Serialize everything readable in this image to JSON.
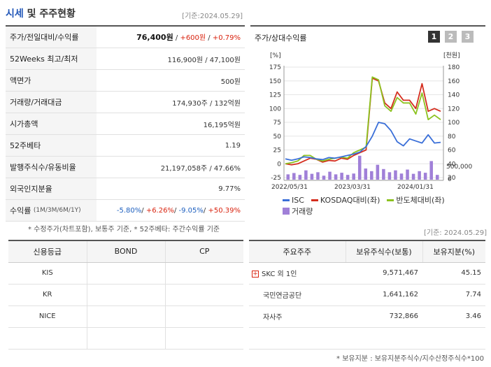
{
  "header": {
    "title_a": "시세",
    "title_b": " 및 주주현황",
    "date": "[기준:2024.05.29]"
  },
  "summary": [
    {
      "label": "주가/전일대비/수익률",
      "price": "76,400원",
      "sep1": " / ",
      "change": "+600원",
      "sep2": " / ",
      "rate": "+0.79%"
    },
    {
      "label": "52Weeks 최고/최저",
      "value": "116,900원 / 47,100원"
    },
    {
      "label": "액면가",
      "value": "500원"
    },
    {
      "label": "거래량/거래대금",
      "value": "174,930주 / 132억원"
    },
    {
      "label": "시가총액",
      "value": "16,195억원"
    },
    {
      "label": "52주베타",
      "value": "1.19"
    },
    {
      "label": "발행주식수/유동비율",
      "value": "21,197,058주 / 47.66%"
    },
    {
      "label": "외국인지분율",
      "value": "9.77%"
    },
    {
      "label": "수익률",
      "sublabel": "(1M/3M/6M/1Y)",
      "r1": "-5.80%",
      "r2": "+6.26%",
      "r3": "-9.05%",
      "r4": "+50.39%"
    }
  ],
  "left_note": "* 수정주가(차트포함), 보통주 기준, * 52주베타: 주간수익률 기준",
  "chart": {
    "title": "주가/상대수익률",
    "buttons": [
      "1",
      "2",
      "3"
    ],
    "left_unit": "[%]",
    "right_unit": "[천원]",
    "left_ticks": [
      "175",
      "150",
      "125",
      "100",
      "75",
      "50",
      "25",
      "0",
      "-25"
    ],
    "right_ticks": [
      "180",
      "160",
      "140",
      "120",
      "100",
      "80",
      "60",
      "40",
      "20"
    ],
    "vol_tick": "500,000",
    "vol_zero": "0",
    "x_labels": [
      "2022/05/31",
      "2023/03/31",
      "2024/01/31"
    ],
    "legend": [
      "ISC",
      "KOSDAQ대비(좌)",
      "반도체대비(좌)",
      "거래량"
    ],
    "colors": {
      "isc": "#3a6fd8",
      "kosdaq": "#d42d1e",
      "semi": "#8cc21f",
      "volume": "#a080d8"
    }
  },
  "chart_data": {
    "type": "line",
    "x_range": [
      "2022/05/31",
      "2024/05/29"
    ],
    "ylim_left": [
      -25,
      175
    ],
    "ylim_right": [
      20,
      180
    ],
    "series": [
      {
        "name": "ISC",
        "axis": "right",
        "values": [
          47,
          45,
          47,
          50,
          49,
          47,
          46,
          49,
          48,
          50,
          52,
          54,
          57,
          65,
          80,
          100,
          98,
          88,
          72,
          66,
          76,
          73,
          70,
          82,
          70,
          71
        ]
      },
      {
        "name": "KOSDAQ대비(좌)",
        "axis": "left",
        "values": [
          0,
          -2,
          0,
          5,
          10,
          8,
          3,
          6,
          5,
          10,
          8,
          15,
          20,
          25,
          155,
          150,
          110,
          100,
          130,
          115,
          115,
          100,
          145,
          95,
          100,
          95
        ]
      },
      {
        "name": "반도체대비(좌)",
        "axis": "left",
        "values": [
          0,
          2,
          5,
          15,
          15,
          8,
          5,
          8,
          10,
          12,
          10,
          20,
          25,
          30,
          157,
          152,
          105,
          95,
          120,
          110,
          110,
          90,
          128,
          80,
          88,
          80
        ]
      },
      {
        "name": "거래량",
        "axis": "volume",
        "vlim": [
          0,
          1000000
        ],
        "values": [
          200000,
          250000,
          180000,
          350000,
          220000,
          280000,
          150000,
          300000,
          200000,
          260000,
          180000,
          230000,
          900000,
          420000,
          320000,
          560000,
          400000,
          280000,
          350000,
          230000,
          380000,
          220000,
          320000,
          260000,
          700000,
          180000
        ]
      }
    ]
  },
  "right_date": "[기준: 2024.05.29]",
  "credit": {
    "headers": [
      "신용등급",
      "BOND",
      "CP"
    ],
    "rows": [
      [
        "KIS",
        "",
        ""
      ],
      [
        "KR",
        "",
        ""
      ],
      [
        "NICE",
        "",
        ""
      ],
      [
        "",
        "",
        ""
      ]
    ]
  },
  "holders": {
    "headers": [
      "주요주주",
      "보유주식수(보통)",
      "보유지분(%)"
    ],
    "rows": [
      {
        "name": "SKC 외 1인",
        "shares": "9,571,467",
        "pct": "45.15",
        "expand": "+"
      },
      {
        "name": "국민연금공단",
        "shares": "1,641,162",
        "pct": "7.74"
      },
      {
        "name": "자사주",
        "shares": "732,866",
        "pct": "3.46"
      }
    ]
  },
  "bottom_note": "* 보유지분 : 보유지분주식수/지수산정주식수*100"
}
